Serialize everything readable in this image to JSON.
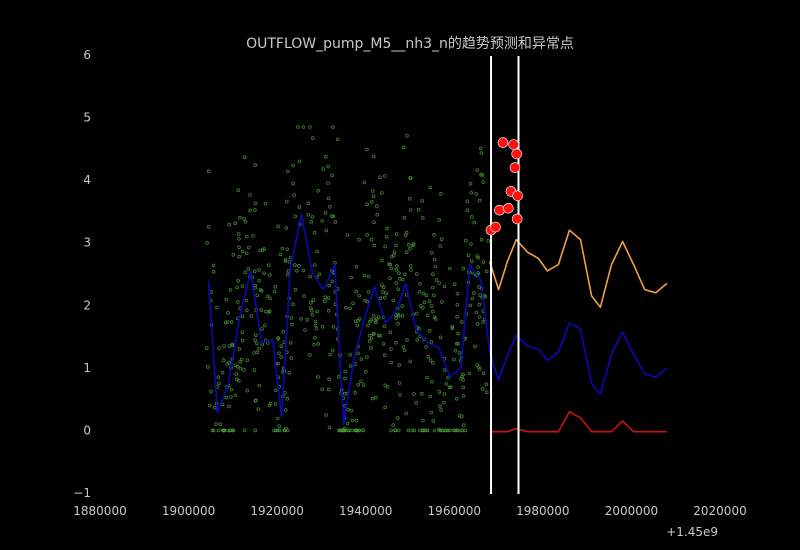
{
  "chart_data": {
    "type": "line",
    "title": "OUTFLOW_pump_M5__nh3_n的趋势预测和异常点",
    "xlabel": "",
    "ylabel": "",
    "x_offset_label": "+1.45e9",
    "xlim": [
      1880000,
      2020000
    ],
    "ylim": [
      -1,
      6
    ],
    "x_ticks": [
      1880000,
      1900000,
      1920000,
      1940000,
      1960000,
      1980000,
      2000000,
      2020000
    ],
    "y_ticks": [
      -1,
      0,
      1,
      2,
      3,
      4,
      5,
      6
    ],
    "grid": false,
    "legend": "none",
    "colors": {
      "background": "#000000",
      "text": "#c8c8c8",
      "observed_points": "#4c9a3c",
      "trend": "#0a0ab4",
      "forecast_upper": "#f0a040",
      "forecast_lower": "#c81414",
      "anomalies": "#ff1010",
      "vertical_lines": "#ffffff"
    },
    "vertical_lines_x": [
      1968300,
      1974500
    ],
    "series": [
      {
        "kind": "line",
        "color_key": "trend",
        "x": [
          1904500,
          1906500,
          1909000,
          1911500,
          1914000,
          1916500,
          1919000,
          1921000,
          1923000,
          1925500,
          1928000,
          1930500,
          1933000,
          1935000,
          1937500,
          1940000,
          1942000,
          1944500,
          1947000,
          1949000,
          1951500,
          1954000,
          1956500,
          1959000,
          1961500,
          1963500,
          1966000,
          1968000,
          1970000,
          1972000,
          1974000,
          1976500,
          1979000,
          1981000,
          1983500,
          1986000,
          1988500,
          1991000,
          1993000,
          1995500,
          1998000,
          2000500,
          2003000,
          2005500,
          2008000
        ],
        "y": [
          2.4,
          0.28,
          0.75,
          1.8,
          2.55,
          1.4,
          1.45,
          0.22,
          2.6,
          3.45,
          2.5,
          2.25,
          2.65,
          0.1,
          1.2,
          1.85,
          2.3,
          1.72,
          1.9,
          2.35,
          1.6,
          1.4,
          1.32,
          0.85,
          1.0,
          2.65,
          2.4,
          1.25,
          0.8,
          1.2,
          1.52,
          1.35,
          1.3,
          1.12,
          1.25,
          1.72,
          1.62,
          0.75,
          0.58,
          1.22,
          1.57,
          1.22,
          0.9,
          0.85,
          1.0
        ]
      },
      {
        "kind": "line",
        "color_key": "forecast_upper",
        "x": [
          1968000,
          1970000,
          1972000,
          1974000,
          1976500,
          1979000,
          1981000,
          1983500,
          1986000,
          1988500,
          1991000,
          1993000,
          1995500,
          1998000,
          2000500,
          2003000,
          2005500,
          2008000
        ],
        "y": [
          2.7,
          2.25,
          2.7,
          3.05,
          2.85,
          2.75,
          2.55,
          2.65,
          3.2,
          3.05,
          2.15,
          1.97,
          2.65,
          3.02,
          2.65,
          2.25,
          2.2,
          2.35
        ]
      },
      {
        "kind": "line",
        "color_key": "forecast_lower",
        "x": [
          1968000,
          1970000,
          1972000,
          1974000,
          1976500,
          1979000,
          1981000,
          1983500,
          1986000,
          1988500,
          1991000,
          1993000,
          1995500,
          1998000,
          2000500,
          2003000,
          2005500,
          2008000
        ],
        "y": [
          -0.02,
          -0.02,
          -0.02,
          0.03,
          -0.02,
          -0.02,
          -0.02,
          -0.02,
          0.3,
          0.2,
          -0.02,
          -0.02,
          -0.02,
          0.15,
          -0.02,
          -0.02,
          -0.02,
          -0.02
        ]
      },
      {
        "kind": "scatter",
        "color_key": "anomalies",
        "x": [
          1968300,
          1969300,
          1970200,
          1971000,
          1972200,
          1972800,
          1973400,
          1973700,
          1974100,
          1974300,
          1974200
        ],
        "y": [
          3.2,
          3.25,
          3.52,
          4.6,
          3.55,
          3.82,
          4.57,
          4.2,
          4.42,
          3.75,
          3.38
        ]
      }
    ],
    "observed_points": {
      "color_key": "observed_points",
      "note_count": 650,
      "x_range": [
        1904000,
        1968000
      ],
      "y_range": [
        0.0,
        4.85
      ]
    }
  }
}
